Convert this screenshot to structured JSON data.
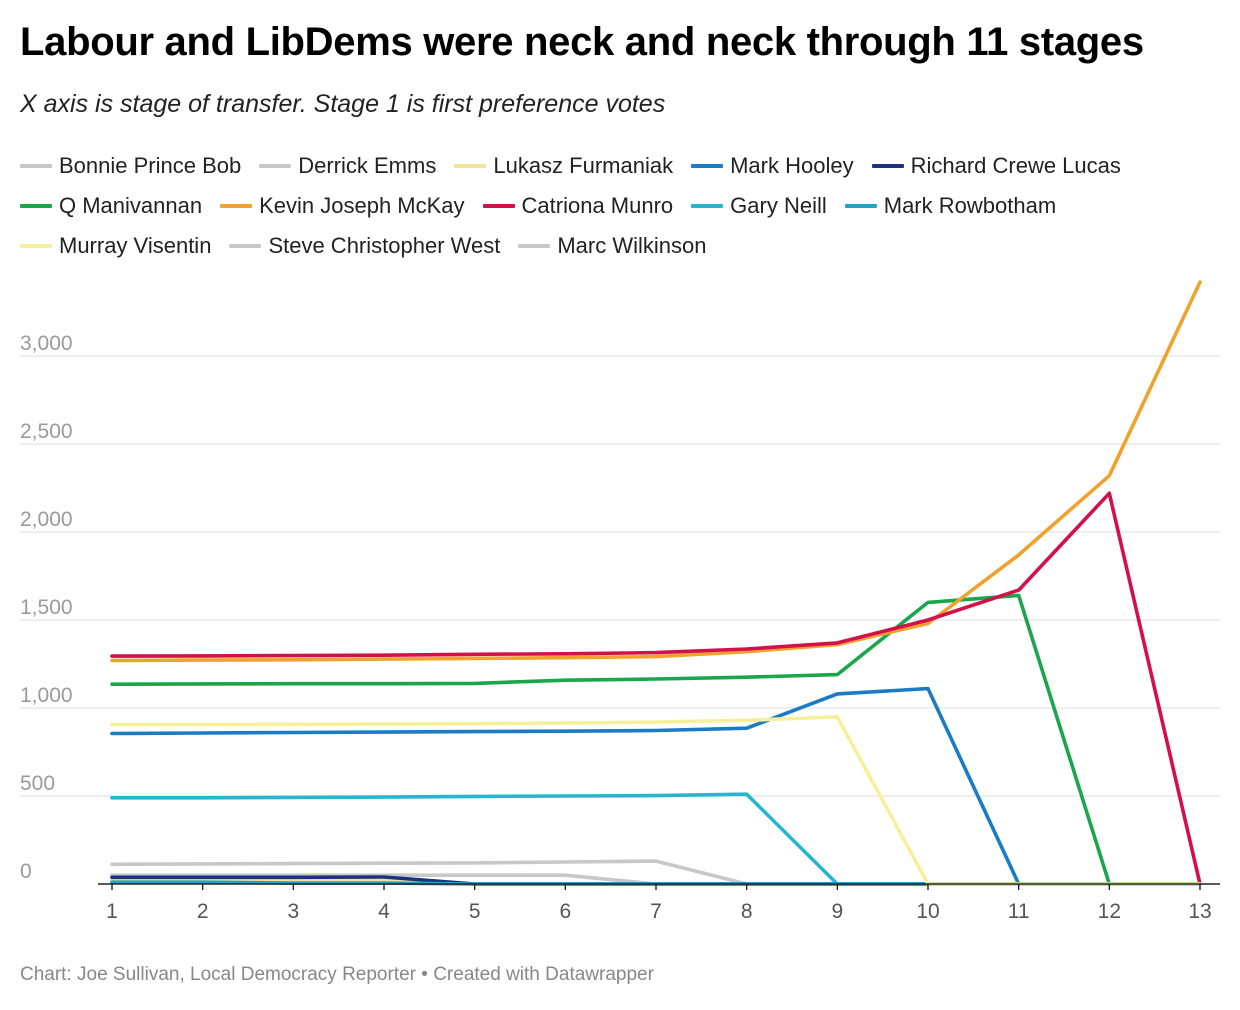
{
  "header": {
    "title": "Labour and LibDems were neck and neck through 11 stages",
    "subtitle": "X axis is stage of transfer. Stage 1 is first preference votes"
  },
  "footer": {
    "text": "Chart: Joe Sullivan, Local Democracy Reporter • Created with Datawrapper"
  },
  "chart_data": {
    "type": "line",
    "title": "Labour and LibDems were neck and neck through 11 stages",
    "subtitle": "X axis is stage of transfer. Stage 1 is first preference votes",
    "xlabel": "",
    "ylabel": "",
    "x": [
      1,
      2,
      3,
      4,
      5,
      6,
      7,
      8,
      9,
      10,
      11,
      12,
      13
    ],
    "xlim": [
      1,
      13
    ],
    "ylim": [
      0,
      3400
    ],
    "yticks": [
      0,
      500,
      1000,
      1500,
      2000,
      2500,
      3000
    ],
    "ytick_labels": [
      "0",
      "500",
      "1,000",
      "1,500",
      "2,000",
      "2,500",
      "3,000"
    ],
    "grid": true,
    "legend_position": "top",
    "series": [
      {
        "name": "Bonnie Prince Bob",
        "color": "#c8c8c8",
        "values": [
          50,
          50,
          50,
          50,
          50,
          50,
          0,
          0,
          0,
          0,
          0,
          0,
          0
        ]
      },
      {
        "name": "Derrick Emms",
        "color": "#c8c8c8",
        "values": [
          15,
          15,
          15,
          15,
          0,
          0,
          0,
          0,
          0,
          0,
          0,
          0,
          0
        ]
      },
      {
        "name": "Lukasz Furmaniak",
        "color": "#f0e39a",
        "values": [
          25,
          25,
          25,
          25,
          0,
          0,
          0,
          0,
          0,
          0,
          0,
          0,
          0
        ]
      },
      {
        "name": "Mark Hooley",
        "color": "#1b7bc4",
        "values": [
          855,
          858,
          861,
          863,
          866,
          868,
          872,
          885,
          1080,
          1110,
          0,
          0,
          0
        ]
      },
      {
        "name": "Richard Crewe Lucas",
        "color": "#1a3380",
        "values": [
          38,
          38,
          38,
          40,
          0,
          0,
          0,
          0,
          0,
          0,
          0,
          0,
          0
        ]
      },
      {
        "name": "Q Manivannan",
        "color": "#1aa64b",
        "values": [
          1135,
          1137,
          1138,
          1138,
          1140,
          1158,
          1165,
          1175,
          1190,
          1600,
          1640,
          0,
          0
        ]
      },
      {
        "name": "Kevin Joseph McKay",
        "color": "#f0a22e",
        "values": [
          1270,
          1272,
          1274,
          1278,
          1282,
          1286,
          1292,
          1320,
          1360,
          1480,
          1870,
          2320,
          3420
        ]
      },
      {
        "name": "Catriona Munro",
        "color": "#d4104a",
        "values": [
          1295,
          1296,
          1298,
          1300,
          1305,
          1308,
          1315,
          1335,
          1370,
          1500,
          1670,
          2220,
          0
        ]
      },
      {
        "name": "Gary Neill",
        "color": "#27b5cf",
        "values": [
          490,
          490,
          492,
          494,
          498,
          500,
          502,
          510,
          0,
          0,
          0,
          0,
          0
        ]
      },
      {
        "name": "Mark Rowbotham",
        "color": "#1fa3c7",
        "values": [
          10,
          10,
          5,
          5,
          0,
          0,
          0,
          0,
          0,
          0,
          0,
          0,
          0
        ]
      },
      {
        "name": "Murray Visentin",
        "color": "#f7f09a",
        "values": [
          905,
          906,
          907,
          909,
          911,
          915,
          920,
          930,
          950,
          0,
          0,
          0,
          0
        ]
      },
      {
        "name": "Steve Christopher West",
        "color": "#c8c8c8",
        "values": [
          112,
          114,
          116,
          118,
          120,
          125,
          130,
          0,
          0,
          0,
          0,
          0,
          0
        ]
      },
      {
        "name": "Marc Wilkinson",
        "color": "#c8c8c8",
        "values": [
          30,
          30,
          30,
          30,
          0,
          0,
          0,
          0,
          0,
          0,
          0,
          0,
          0
        ]
      }
    ]
  }
}
